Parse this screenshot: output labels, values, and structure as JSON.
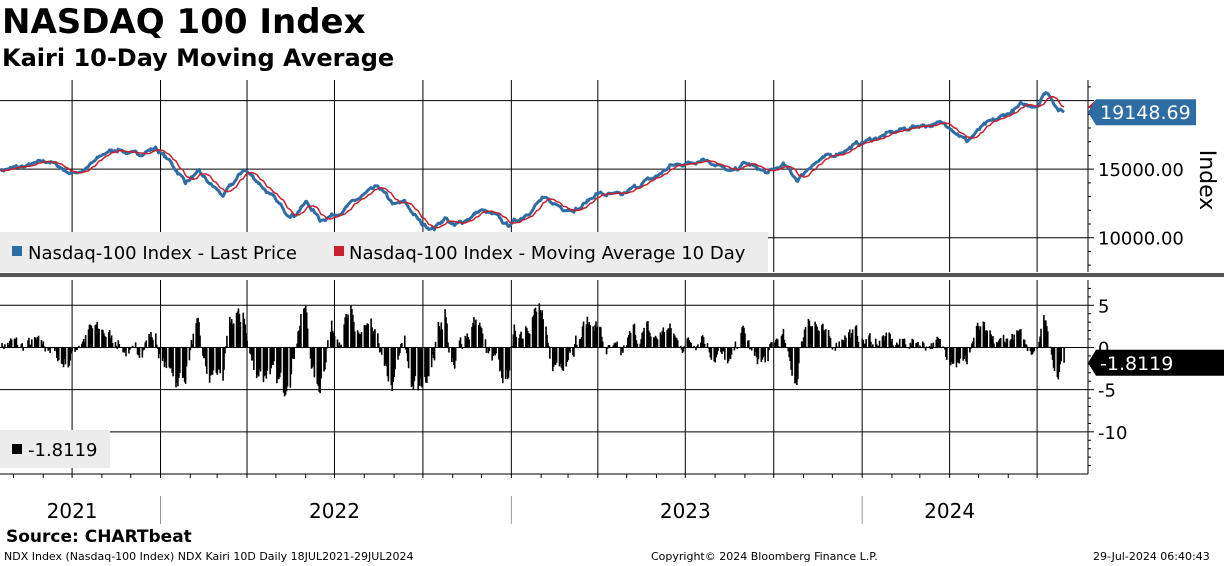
{
  "header": {
    "title": "NASDAQ 100 Index",
    "subtitle": "Kairi 10-Day Moving Average"
  },
  "footer": {
    "source": "Source: CHARTbeat",
    "security": "NDX Index (Nasdaq-100 Index) NDX Kairi 10D  Daily 18JUL2021-29JUL2024",
    "copyright": "Copyright© 2024 Bloomberg Finance L.P.",
    "timestamp": "29-Jul-2024 06:40:43"
  },
  "colors": {
    "price": "#2e6ca4",
    "moving_average": "#c8202c",
    "kairi": "#000000",
    "last_price_tag": "#2e6ca4",
    "ma_tag": "#c8202c",
    "legend_bg": "#ececec"
  },
  "chart_data": [
    {
      "type": "line",
      "panel": "top",
      "ylabel": "Index",
      "ylim": [
        7500,
        21500
      ],
      "yticks": [
        "15000.00",
        "10000.00"
      ],
      "ytick_values": [
        15000,
        10000
      ],
      "xlim": [
        "2021-07-18",
        "2024-07-29"
      ],
      "x_tick_labels": [
        "2021",
        "2022",
        "2023",
        "2024"
      ],
      "x_tick_dates": [
        "2021-10-01",
        "2022-07-01",
        "2023-07-01",
        "2024-04-01"
      ],
      "grid": true,
      "legend_position": "bottom-left",
      "last_value_label": "19148.69",
      "last_value": 19148.69,
      "series": [
        {
          "name": "Nasdaq-100 Index - Last Price",
          "x": [
            "2021-07-19",
            "2021-08-15",
            "2021-09-07",
            "2021-09-30",
            "2021-10-15",
            "2021-11-05",
            "2021-11-19",
            "2021-12-03",
            "2021-12-27",
            "2022-01-10",
            "2022-01-27",
            "2022-02-10",
            "2022-02-24",
            "2022-03-08",
            "2022-03-29",
            "2022-04-14",
            "2022-05-10",
            "2022-05-20",
            "2022-06-02",
            "2022-06-16",
            "2022-07-08",
            "2022-08-01",
            "2022-08-16",
            "2022-09-01",
            "2022-09-12",
            "2022-09-30",
            "2022-10-13",
            "2022-10-24",
            "2022-11-03",
            "2022-11-30",
            "2022-12-14",
            "2022-12-28",
            "2023-01-12",
            "2023-02-02",
            "2023-02-24",
            "2023-03-13",
            "2023-03-31",
            "2023-04-25",
            "2023-05-15",
            "2023-06-01",
            "2023-06-15",
            "2023-07-10",
            "2023-07-19",
            "2023-08-02",
            "2023-08-18",
            "2023-09-01",
            "2023-09-25",
            "2023-10-11",
            "2023-10-26",
            "2023-11-10",
            "2023-12-01",
            "2023-12-28",
            "2024-01-24",
            "2024-02-15",
            "2024-03-01",
            "2024-03-21",
            "2024-04-01",
            "2024-04-19",
            "2024-05-06",
            "2024-05-22",
            "2024-06-14",
            "2024-07-01",
            "2024-07-10",
            "2024-07-16",
            "2024-07-24",
            "2024-07-29"
          ],
          "y": [
            14950,
            15200,
            15600,
            14700,
            15000,
            16200,
            16500,
            16000,
            16550,
            15600,
            14100,
            14700,
            13750,
            13050,
            15000,
            14000,
            11950,
            11700,
            12600,
            11300,
            11950,
            13100,
            13650,
            12350,
            12550,
            10970,
            10700,
            11500,
            10800,
            12000,
            11600,
            10900,
            11500,
            12800,
            12200,
            12150,
            13250,
            13000,
            13900,
            14450,
            15200,
            15550,
            15850,
            15400,
            14700,
            15450,
            14700,
            15300,
            14200,
            15400,
            16000,
            16850,
            17450,
            17950,
            18200,
            18300,
            18200,
            17050,
            18100,
            18650,
            19600,
            19700,
            20650,
            20250,
            19300,
            19148.69
          ]
        },
        {
          "name": "Nasdaq-100 Index - Moving Average 10 Day",
          "x": [
            "2021-07-19",
            "2021-08-15",
            "2021-09-07",
            "2021-09-30",
            "2021-10-15",
            "2021-11-05",
            "2021-11-19",
            "2021-12-03",
            "2021-12-27",
            "2022-01-10",
            "2022-01-27",
            "2022-02-10",
            "2022-02-24",
            "2022-03-08",
            "2022-03-29",
            "2022-04-14",
            "2022-05-10",
            "2022-05-20",
            "2022-06-02",
            "2022-06-16",
            "2022-07-08",
            "2022-08-01",
            "2022-08-16",
            "2022-09-01",
            "2022-09-12",
            "2022-09-30",
            "2022-10-13",
            "2022-10-24",
            "2022-11-03",
            "2022-11-30",
            "2022-12-14",
            "2022-12-28",
            "2023-01-12",
            "2023-02-02",
            "2023-02-24",
            "2023-03-13",
            "2023-03-31",
            "2023-04-25",
            "2023-05-15",
            "2023-06-01",
            "2023-06-15",
            "2023-07-10",
            "2023-07-19",
            "2023-08-02",
            "2023-08-18",
            "2023-09-01",
            "2023-09-25",
            "2023-10-11",
            "2023-10-26",
            "2023-11-10",
            "2023-12-01",
            "2023-12-28",
            "2024-01-24",
            "2024-02-15",
            "2024-03-01",
            "2024-03-21",
            "2024-04-01",
            "2024-04-19",
            "2024-05-06",
            "2024-05-22",
            "2024-06-14",
            "2024-07-01",
            "2024-07-10",
            "2024-07-16",
            "2024-07-24",
            "2024-07-29"
          ],
          "y": [
            14900,
            15100,
            15500,
            14950,
            14900,
            15800,
            16350,
            16150,
            16400,
            15950,
            14800,
            14500,
            14150,
            13450,
            14400,
            14350,
            12700,
            11900,
            12200,
            11800,
            11800,
            12700,
            13400,
            12800,
            12500,
            11500,
            10950,
            11200,
            11000,
            11700,
            11700,
            11150,
            11300,
            12300,
            12400,
            12250,
            12900,
            13050,
            13650,
            14250,
            14900,
            15400,
            15650,
            15550,
            15000,
            15250,
            15000,
            15200,
            14700,
            15000,
            15700,
            16650,
            17250,
            17800,
            18050,
            18250,
            18250,
            17500,
            17850,
            18450,
            19300,
            19550,
            20150,
            20300,
            19900,
            19650
          ]
        }
      ]
    },
    {
      "type": "bar",
      "panel": "bottom",
      "ylim": [
        -15,
        8
      ],
      "yticks": [
        "5",
        "0",
        "-5",
        "-10"
      ],
      "ytick_values": [
        5,
        0,
        -5,
        -10
      ],
      "grid": true,
      "legend_position": "bottom-left",
      "last_value_label": "-1.8119",
      "last_value": -1.8119,
      "series": [
        {
          "name": "-1.8119",
          "x": [
            "2021-07-19",
            "2021-08-15",
            "2021-09-07",
            "2021-09-30",
            "2021-10-15",
            "2021-11-05",
            "2021-11-19",
            "2021-12-03",
            "2021-12-27",
            "2022-01-10",
            "2022-01-27",
            "2022-02-10",
            "2022-02-24",
            "2022-03-08",
            "2022-03-29",
            "2022-04-14",
            "2022-05-10",
            "2022-05-20",
            "2022-06-02",
            "2022-06-16",
            "2022-07-08",
            "2022-08-01",
            "2022-08-16",
            "2022-09-01",
            "2022-09-12",
            "2022-09-30",
            "2022-10-13",
            "2022-10-24",
            "2022-11-03",
            "2022-11-30",
            "2022-12-14",
            "2022-12-28",
            "2023-01-12",
            "2023-02-02",
            "2023-02-24",
            "2023-03-13",
            "2023-03-31",
            "2023-04-25",
            "2023-05-15",
            "2023-06-01",
            "2023-06-15",
            "2023-07-10",
            "2023-07-19",
            "2023-08-02",
            "2023-08-18",
            "2023-09-01",
            "2023-09-25",
            "2023-10-11",
            "2023-10-26",
            "2023-11-10",
            "2023-12-01",
            "2023-12-28",
            "2024-01-24",
            "2024-02-15",
            "2024-03-01",
            "2024-03-21",
            "2024-04-01",
            "2024-04-19",
            "2024-05-06",
            "2024-05-22",
            "2024-06-14",
            "2024-07-01",
            "2024-07-10",
            "2024-07-16",
            "2024-07-24",
            "2024-07-29"
          ]
        }
      ]
    }
  ]
}
